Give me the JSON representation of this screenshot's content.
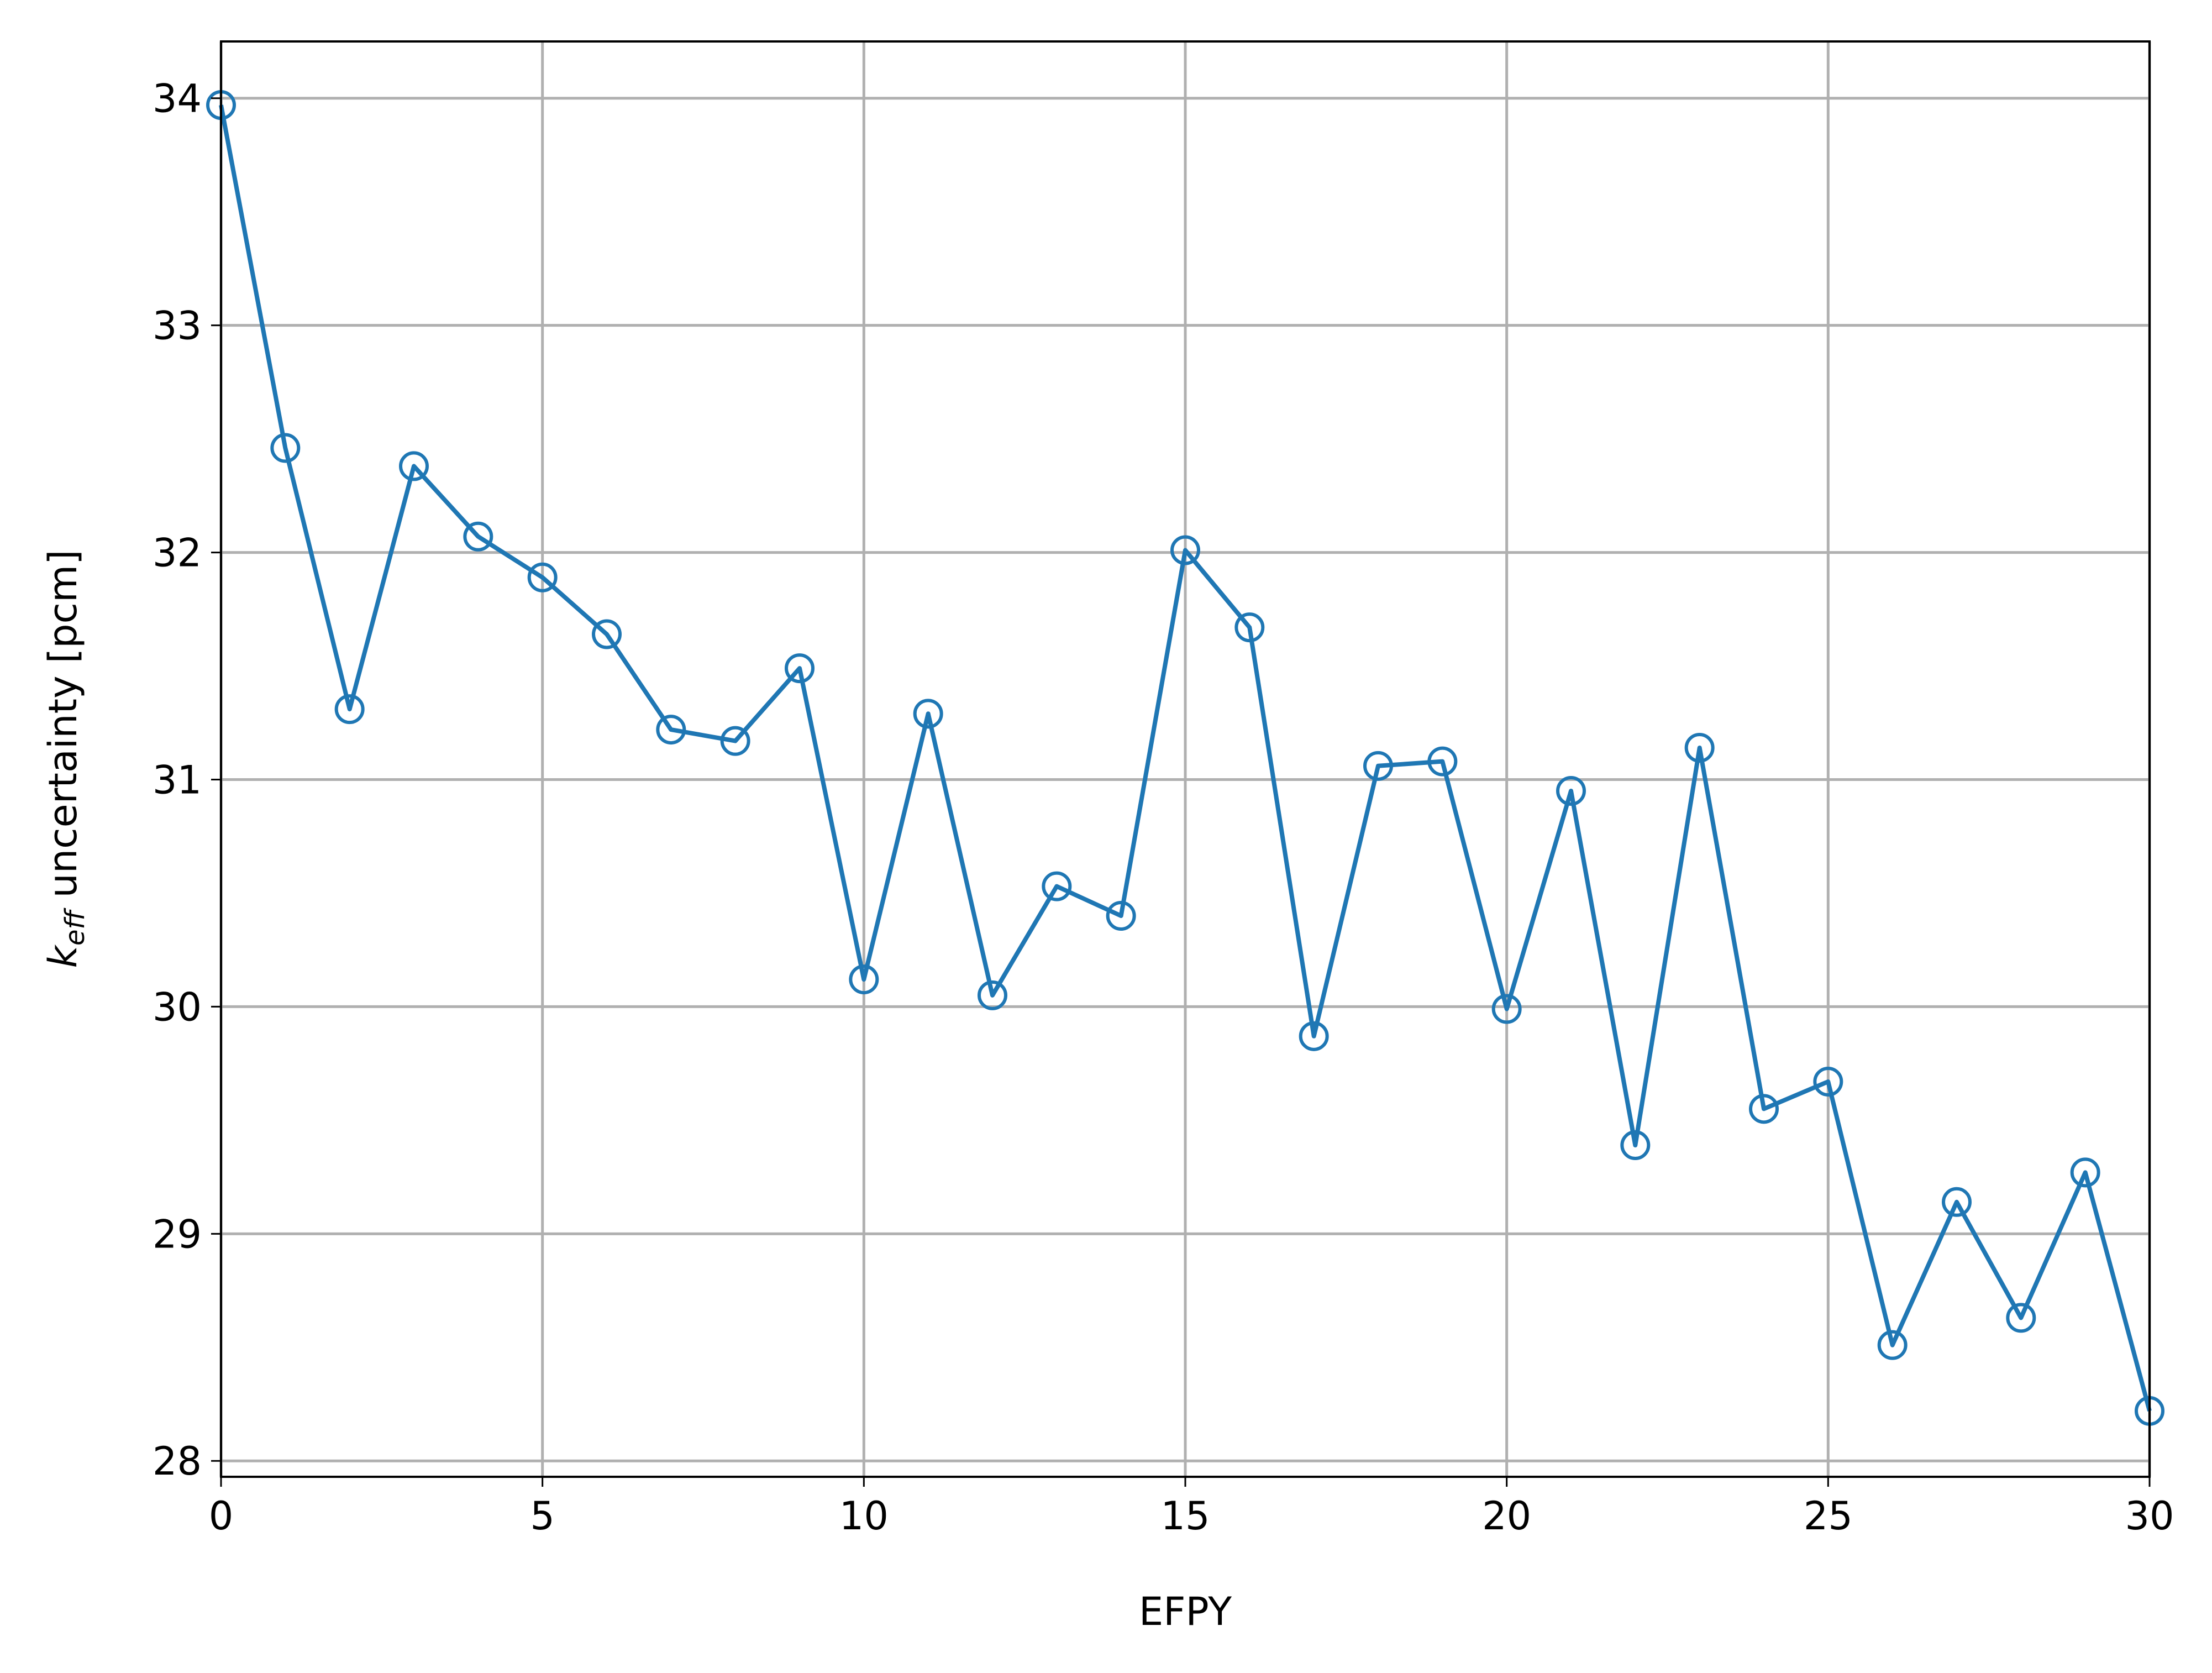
{
  "chart_data": {
    "type": "line",
    "xlabel": "EFPY",
    "ylabel_main": "k",
    "ylabel_sub": "eff",
    "ylabel_rest": " uncertainty [pcm]",
    "xlim": [
      0,
      30
    ],
    "ylim": [
      27.93,
      34.25
    ],
    "xticks": [
      0,
      5,
      10,
      15,
      20,
      25,
      30
    ],
    "yticks": [
      28,
      29,
      30,
      31,
      32,
      33,
      34
    ],
    "grid": true,
    "marker": "open-circle",
    "color": "#1f77b4",
    "x": [
      0,
      1,
      2,
      3,
      4,
      5,
      6,
      7,
      8,
      9,
      10,
      11,
      12,
      13,
      14,
      15,
      16,
      17,
      18,
      19,
      20,
      21,
      22,
      23,
      24,
      25,
      26,
      27,
      28,
      29,
      30
    ],
    "values": [
      33.97,
      32.46,
      31.31,
      32.38,
      32.07,
      31.89,
      31.64,
      31.22,
      31.17,
      31.49,
      30.12,
      31.29,
      30.05,
      30.53,
      30.4,
      32.01,
      31.67,
      29.87,
      31.06,
      31.08,
      29.99,
      30.95,
      29.39,
      31.14,
      29.55,
      29.67,
      28.51,
      29.14,
      28.63,
      29.27,
      28.22
    ]
  }
}
